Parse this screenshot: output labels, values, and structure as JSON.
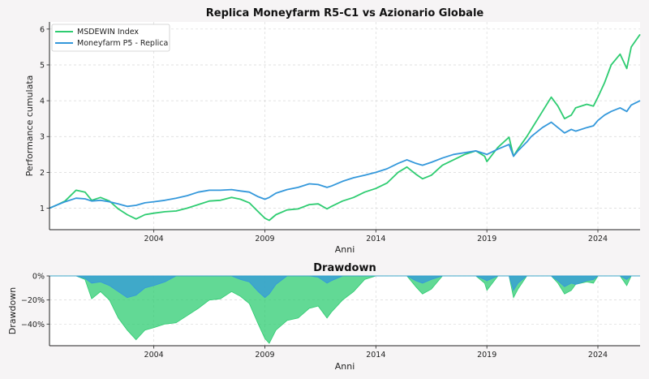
{
  "chart_data": [
    {
      "type": "line",
      "title": "Replica Moneyfarm R5-C1 vs Azionario Globale",
      "xlabel": "Anni",
      "ylabel": "Performance cumulata",
      "xlim": [
        1999.3,
        2025.9
      ],
      "ylim": [
        0.4,
        6.2
      ],
      "xticks": [
        2004,
        2009,
        2014,
        2019,
        2024
      ],
      "yticks": [
        1,
        2,
        3,
        4,
        5,
        6
      ],
      "grid": true,
      "legend": "top-left",
      "x": [
        1999.3,
        1999.6,
        2000.0,
        2000.5,
        2000.9,
        2001.2,
        2001.6,
        2002.0,
        2002.4,
        2002.8,
        2003.2,
        2003.6,
        2004.0,
        2004.5,
        2005.0,
        2005.5,
        2006.0,
        2006.5,
        2007.0,
        2007.5,
        2007.9,
        2008.3,
        2008.7,
        2009.0,
        2009.2,
        2009.5,
        2010.0,
        2010.5,
        2011.0,
        2011.4,
        2011.8,
        2012.0,
        2012.5,
        2013.0,
        2013.5,
        2014.0,
        2014.5,
        2015.0,
        2015.4,
        2015.8,
        2016.1,
        2016.5,
        2017.0,
        2017.5,
        2018.0,
        2018.5,
        2018.9,
        2019.0,
        2019.5,
        2020.0,
        2020.2,
        2020.4,
        2020.8,
        2021.0,
        2021.5,
        2021.9,
        2022.2,
        2022.5,
        2022.8,
        2023.0,
        2023.5,
        2023.8,
        2024.0,
        2024.3,
        2024.6,
        2025.0,
        2025.3,
        2025.5,
        2025.9
      ],
      "series": [
        {
          "name": "MSDEWIN Index",
          "color": "#2ecc71",
          "values": [
            1.0,
            1.08,
            1.2,
            1.5,
            1.45,
            1.22,
            1.3,
            1.2,
            0.98,
            0.82,
            0.7,
            0.82,
            0.86,
            0.9,
            0.92,
            1.0,
            1.1,
            1.2,
            1.22,
            1.3,
            1.25,
            1.15,
            0.9,
            0.72,
            0.66,
            0.82,
            0.95,
            0.98,
            1.1,
            1.12,
            0.98,
            1.05,
            1.2,
            1.3,
            1.45,
            1.55,
            1.7,
            2.0,
            2.15,
            1.95,
            1.82,
            1.92,
            2.2,
            2.35,
            2.5,
            2.6,
            2.45,
            2.3,
            2.7,
            2.98,
            2.45,
            2.65,
            3.0,
            3.2,
            3.7,
            4.1,
            3.85,
            3.5,
            3.6,
            3.8,
            3.9,
            3.85,
            4.1,
            4.5,
            5.0,
            5.3,
            4.9,
            5.5,
            5.85
          ]
        },
        {
          "name": "Moneyfarm P5 - Replica",
          "color": "#3498db",
          "values": [
            1.0,
            1.08,
            1.18,
            1.28,
            1.26,
            1.2,
            1.22,
            1.18,
            1.12,
            1.05,
            1.08,
            1.15,
            1.18,
            1.22,
            1.28,
            1.35,
            1.45,
            1.5,
            1.5,
            1.52,
            1.48,
            1.45,
            1.32,
            1.25,
            1.3,
            1.42,
            1.52,
            1.58,
            1.68,
            1.66,
            1.58,
            1.62,
            1.75,
            1.85,
            1.92,
            2.0,
            2.1,
            2.25,
            2.35,
            2.25,
            2.2,
            2.28,
            2.4,
            2.5,
            2.55,
            2.6,
            2.52,
            2.5,
            2.65,
            2.78,
            2.45,
            2.6,
            2.85,
            3.0,
            3.25,
            3.4,
            3.25,
            3.1,
            3.2,
            3.15,
            3.25,
            3.3,
            3.45,
            3.6,
            3.7,
            3.8,
            3.7,
            3.88,
            4.0
          ]
        }
      ]
    },
    {
      "type": "area",
      "title": "Drawdown",
      "xlabel": "Anni",
      "ylabel": "Drawdown",
      "xlim": [
        1999.3,
        2025.9
      ],
      "ylim": [
        -58,
        0
      ],
      "xticks": [
        2004,
        2009,
        2014,
        2019,
        2024
      ],
      "yticks": [
        0,
        -20,
        -40
      ],
      "ytick_labels": [
        "0%",
        "−20%",
        "−40%"
      ],
      "grid": true,
      "x": [
        1999.3,
        1999.6,
        2000.0,
        2000.5,
        2000.9,
        2001.2,
        2001.6,
        2002.0,
        2002.4,
        2002.8,
        2003.2,
        2003.6,
        2004.0,
        2004.5,
        2005.0,
        2005.5,
        2006.0,
        2006.5,
        2007.0,
        2007.5,
        2007.9,
        2008.3,
        2008.7,
        2009.0,
        2009.2,
        2009.5,
        2010.0,
        2010.5,
        2011.0,
        2011.4,
        2011.8,
        2012.0,
        2012.5,
        2013.0,
        2013.5,
        2014.0,
        2014.5,
        2015.0,
        2015.4,
        2015.8,
        2016.1,
        2016.5,
        2017.0,
        2017.5,
        2018.0,
        2018.5,
        2018.9,
        2019.0,
        2019.5,
        2020.0,
        2020.2,
        2020.4,
        2020.8,
        2021.0,
        2021.5,
        2021.9,
        2022.2,
        2022.5,
        2022.8,
        2023.0,
        2023.5,
        2023.8,
        2024.0,
        2024.3,
        2024.6,
        2025.0,
        2025.3,
        2025.5,
        2025.9
      ],
      "series": [
        {
          "name": "MSDEWIN Index",
          "color": "#2ecc71",
          "values": [
            0,
            0,
            0,
            0,
            -3,
            -19,
            -13,
            -20,
            -35,
            -45,
            -53,
            -45,
            -43,
            -40,
            -39,
            -33,
            -27,
            -20,
            -19,
            -13,
            -17,
            -23,
            -40,
            -52,
            -56,
            -45,
            -37,
            -35,
            -27,
            -25,
            -35,
            -30,
            -20,
            -13,
            -3,
            0,
            0,
            0,
            0,
            -9,
            -15,
            -11,
            0,
            0,
            0,
            0,
            -6,
            -12,
            0,
            0,
            -18,
            -11,
            0,
            0,
            0,
            0,
            -6,
            -15,
            -12,
            -7,
            -5,
            -6,
            0,
            0,
            0,
            0,
            -8,
            0,
            0
          ]
        },
        {
          "name": "Moneyfarm P5 - Replica",
          "color": "#3498db",
          "values": [
            0,
            0,
            0,
            0,
            -2,
            -6,
            -5,
            -8,
            -13,
            -18,
            -16,
            -10,
            -8,
            -5,
            0,
            0,
            0,
            0,
            0,
            0,
            -3,
            -5,
            -13,
            -18,
            -15,
            -7,
            0,
            0,
            0,
            -1,
            -6,
            -4,
            0,
            0,
            0,
            0,
            0,
            0,
            0,
            -4,
            -6,
            -3,
            0,
            0,
            0,
            0,
            -3,
            -4,
            0,
            0,
            -12,
            -6,
            0,
            0,
            0,
            0,
            -4,
            -9,
            -6,
            -7,
            -4,
            -3,
            0,
            0,
            0,
            0,
            -3,
            0,
            0
          ]
        }
      ]
    }
  ]
}
